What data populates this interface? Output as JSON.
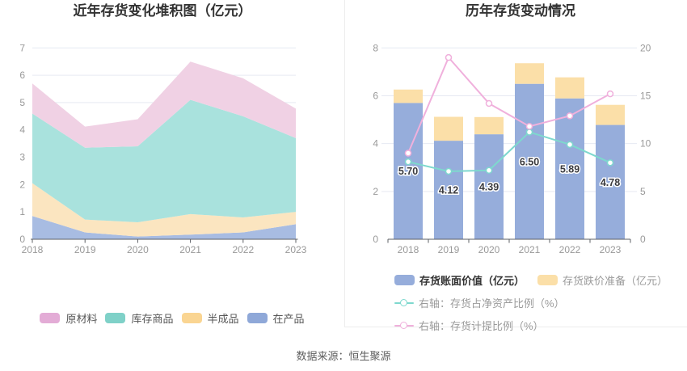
{
  "page": {
    "background": "#ffffff",
    "divider_color": "#ececec",
    "source_note": "数据来源：恒生聚源"
  },
  "left_chart": {
    "title": "近年存货变化堆积图（亿元）",
    "legend": [
      {
        "label": "原材料",
        "color": "#e3acd6"
      },
      {
        "label": "库存商品",
        "color": "#7fd1c8"
      },
      {
        "label": "半成品",
        "color": "#fad592"
      },
      {
        "label": "在产品",
        "color": "#8fa8d8"
      }
    ]
  },
  "right_chart": {
    "title": "历年存货变动情况",
    "legend": {
      "bar1": {
        "label": "存货账面价值（亿元）",
        "color": "#96addb"
      },
      "bar2": {
        "label": "存货跌价准备（亿元）",
        "color": "#fbdfa8"
      },
      "line1": {
        "label": "右轴：存货占净资产比例（%）",
        "color": "#7ed8ce"
      },
      "line2": {
        "label": "右轴：存货计提比例（%）",
        "color": "#f0b0dc"
      }
    }
  },
  "axis_style": {
    "label_color": "#999999",
    "grid_color": "#e6e9f2",
    "axis_color": "#5e6066",
    "bar_label_color": "#3a3a3e"
  },
  "chart_data": [
    {
      "type": "area",
      "stacked": true,
      "title": "近年存货变化堆积图（亿元）",
      "x": [
        "2018",
        "2019",
        "2020",
        "2021",
        "2022",
        "2023"
      ],
      "series": [
        {
          "name": "在产品",
          "values": [
            0.85,
            0.25,
            0.1,
            0.17,
            0.25,
            0.55
          ],
          "color": "#8fa8d8",
          "fill": "#a8bce2"
        },
        {
          "name": "半成品",
          "values": [
            1.2,
            0.47,
            0.52,
            0.75,
            0.55,
            0.45
          ],
          "color": "#fad592",
          "fill": "#fbe5c0"
        },
        {
          "name": "库存商品",
          "values": [
            2.55,
            2.63,
            2.78,
            4.18,
            3.7,
            2.7
          ],
          "color": "#7fd1c8",
          "fill": "#a9e2dd"
        },
        {
          "name": "原材料",
          "values": [
            1.1,
            0.77,
            0.99,
            1.4,
            1.39,
            1.08
          ],
          "color": "#e3acd6",
          "fill": "#f0d1e4"
        }
      ],
      "totals": [
        5.7,
        4.12,
        4.39,
        6.5,
        5.89,
        4.78
      ],
      "ylim": [
        0,
        7
      ],
      "yticks": [
        0,
        1,
        2,
        3,
        4,
        5,
        6,
        7
      ],
      "grid": true,
      "legend_position": "bottom"
    },
    {
      "type": "bar",
      "title": "历年存货变动情况",
      "x": [
        "2018",
        "2019",
        "2020",
        "2021",
        "2022",
        "2023"
      ],
      "bar_series": [
        {
          "name": "存货账面价值（亿元）",
          "axis": "left",
          "stacked": true,
          "color": "#96addb",
          "values": [
            5.7,
            4.12,
            4.39,
            6.5,
            5.89,
            4.78
          ],
          "labels": [
            "5.70",
            "4.12",
            "4.39",
            "6.50",
            "5.89",
            "4.78"
          ]
        },
        {
          "name": "存货跌价准备（亿元）",
          "axis": "left",
          "stacked": true,
          "color": "#fbdfa8",
          "values": [
            0.56,
            1.0,
            0.72,
            0.86,
            0.88,
            0.84
          ]
        }
      ],
      "line_series": [
        {
          "name": "右轴：存货占净资产比例（%）",
          "axis": "right",
          "color": "#7ed8ce",
          "values": [
            8.1,
            7.1,
            7.2,
            11.2,
            9.9,
            8.0
          ]
        },
        {
          "name": "右轴：存货计提比例（%）",
          "axis": "right",
          "color": "#f0b0dc",
          "values": [
            9.0,
            19.0,
            14.2,
            11.8,
            12.9,
            15.2
          ]
        }
      ],
      "left_ylim": [
        0,
        8
      ],
      "left_yticks": [
        0,
        2,
        4,
        6,
        8
      ],
      "right_ylim": [
        0,
        20
      ],
      "right_yticks": [
        0,
        5,
        10,
        15,
        20
      ],
      "grid": true,
      "legend_position": "bottom"
    }
  ]
}
